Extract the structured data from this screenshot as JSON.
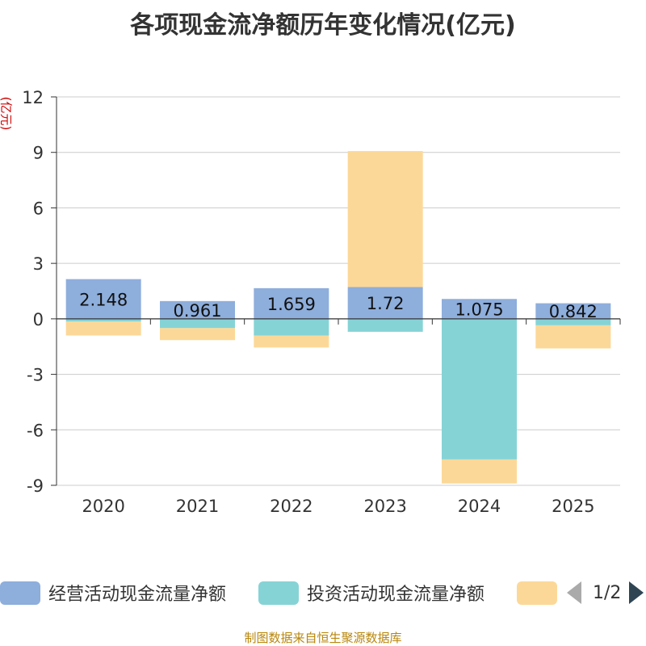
{
  "title": "各项现金流净额历年变化情况(亿元)",
  "unit_label": "(亿元)",
  "source": "制图数据来自恒生聚源数据库",
  "legend": {
    "items": [
      {
        "label": "经营活动现金流量净额",
        "color": "#8eaedc"
      },
      {
        "label": "投资活动现金流量净额",
        "color": "#86d3d6"
      },
      {
        "label": "",
        "color": "#fcd898"
      }
    ],
    "page": "1/2"
  },
  "chart_data": {
    "type": "bar",
    "stacked": true,
    "categories": [
      "2020",
      "2021",
      "2022",
      "2023",
      "2024",
      "2025"
    ],
    "series": [
      {
        "name": "经营活动现金流量净额",
        "color": "#8eaedc",
        "values": [
          2.148,
          0.961,
          1.659,
          1.72,
          1.075,
          0.842
        ],
        "labels": [
          "2.148",
          "0.961",
          "1.659",
          "1.72",
          "1.075",
          "0.842"
        ]
      },
      {
        "name": "投资活动现金流量净额",
        "color": "#86d3d6",
        "values": [
          -0.15,
          -0.5,
          -0.9,
          -0.7,
          -7.6,
          -0.35
        ]
      },
      {
        "name": "",
        "color": "#fcd898",
        "values": [
          -0.75,
          -0.65,
          -0.65,
          7.35,
          -1.3,
          -1.25
        ]
      }
    ],
    "y_ticks": [
      "12",
      "9",
      "6",
      "3",
      "0",
      "-3",
      "-6",
      "-9"
    ],
    "y_tick_values": [
      12,
      9,
      6,
      3,
      0,
      -3,
      -6,
      -9
    ],
    "ylim": [
      -9,
      12
    ],
    "grid": true
  }
}
